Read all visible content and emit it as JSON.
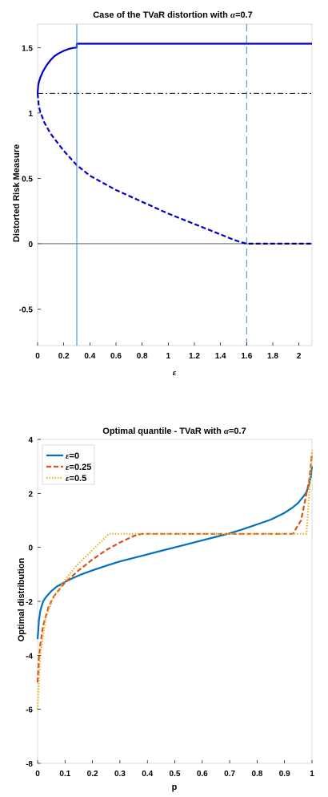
{
  "chart_data": [
    {
      "type": "line",
      "title_prefix": "Case of the TVaR distortion with ",
      "title_symbol": "α",
      "title_suffix": "=0.7",
      "xlabel": "ε",
      "ylabel": "Distorted Risk Measure",
      "xlim": [
        0,
        2.1
      ],
      "ylim": [
        -0.78,
        1.68
      ],
      "xticks": [
        "0",
        "0.2",
        "0.4",
        "0.6",
        "0.8",
        "1",
        "1.2",
        "1.4",
        "1.6",
        "1.8",
        "2"
      ],
      "yticks": [
        "-0.5",
        "0",
        "0.5",
        "1",
        "1.5"
      ],
      "grid": false,
      "colors": {
        "upper": "#0000cd",
        "lower": "#0000cd",
        "dashdot": "#000000",
        "vline1": "#4a90d9",
        "vline2": "#4a90d9"
      },
      "series": [
        {
          "style": "solid",
          "x": [
            0,
            0.005,
            0.01,
            0.02,
            0.04,
            0.06,
            0.08,
            0.1,
            0.13,
            0.16,
            0.2,
            0.24,
            0.27,
            0.3,
            0.3,
            0.5,
            1.0,
            1.5,
            2.0,
            2.1
          ],
          "y": [
            1.15,
            1.21,
            1.235,
            1.27,
            1.315,
            1.35,
            1.38,
            1.405,
            1.435,
            1.455,
            1.475,
            1.49,
            1.497,
            1.5,
            1.53,
            1.53,
            1.53,
            1.53,
            1.53,
            1.53
          ]
        },
        {
          "style": "dashed",
          "x": [
            0,
            0.01,
            0.02,
            0.05,
            0.1,
            0.2,
            0.3,
            0.4,
            0.6,
            0.8,
            1.0,
            1.2,
            1.4,
            1.5,
            1.56,
            1.6,
            1.8,
            2.0,
            2.1
          ],
          "y": [
            1.15,
            1.05,
            1.01,
            0.93,
            0.84,
            0.71,
            0.6,
            0.52,
            0.41,
            0.32,
            0.23,
            0.15,
            0.07,
            0.03,
            0.01,
            0.0,
            0.0,
            0.0,
            0.0
          ]
        },
        {
          "style": "dashdot",
          "x": [
            0,
            2.1
          ],
          "y": [
            1.15,
            1.15
          ]
        },
        {
          "style": "thin",
          "x": [
            0,
            2.1
          ],
          "y": [
            0,
            0
          ]
        }
      ],
      "vlines": [
        {
          "x": 0.3,
          "style": "solid"
        },
        {
          "x": 1.6,
          "style": "dashed"
        }
      ]
    },
    {
      "type": "line",
      "title_prefix": "Optimal quantile - TVaR with ",
      "title_symbol": "α",
      "title_suffix": "=0.7",
      "xlabel": "p",
      "ylabel": "Optimal distribution",
      "xlim": [
        0,
        1
      ],
      "ylim": [
        -8,
        4
      ],
      "xticks": [
        "0",
        "0.1",
        "0.2",
        "0.3",
        "0.4",
        "0.5",
        "0.6",
        "0.7",
        "0.8",
        "0.9",
        "1"
      ],
      "yticks": [
        "-8",
        "-6",
        "-4",
        "-2",
        "0",
        "2",
        "4"
      ],
      "grid": false,
      "legend_position": "top-left",
      "series": [
        {
          "name": "=0",
          "symbol": "ε",
          "color": "#0072bd",
          "style": "solid",
          "x": [
            0.0,
            0.005,
            0.01,
            0.02,
            0.03,
            0.05,
            0.07,
            0.1,
            0.13,
            0.16,
            0.2,
            0.25,
            0.3,
            0.35,
            0.4,
            0.45,
            0.5,
            0.55,
            0.6,
            0.65,
            0.7,
            0.75,
            0.8,
            0.85,
            0.9,
            0.93,
            0.95,
            0.97,
            0.98,
            0.99,
            0.995,
            1.0
          ],
          "y": [
            -3.4,
            -2.7,
            -2.35,
            -2.0,
            -1.85,
            -1.62,
            -1.45,
            -1.28,
            -1.13,
            -1.0,
            -0.85,
            -0.68,
            -0.52,
            -0.39,
            -0.26,
            -0.13,
            0.0,
            0.13,
            0.26,
            0.39,
            0.52,
            0.68,
            0.85,
            1.03,
            1.28,
            1.48,
            1.65,
            1.9,
            2.05,
            2.35,
            2.6,
            3.0
          ]
        },
        {
          "name": "=0.25",
          "symbol": "ε",
          "color": "#d95319",
          "style": "dashed",
          "x": [
            0.0,
            0.005,
            0.01,
            0.02,
            0.04,
            0.06,
            0.1,
            0.15,
            0.2,
            0.25,
            0.3,
            0.35,
            0.38,
            0.5,
            0.6,
            0.7,
            0.8,
            0.9,
            0.93,
            0.96,
            0.99,
            1.0
          ],
          "y": [
            -5.0,
            -4.1,
            -3.6,
            -2.9,
            -2.2,
            -1.8,
            -1.3,
            -0.85,
            -0.45,
            -0.1,
            0.18,
            0.42,
            0.5,
            0.5,
            0.5,
            0.5,
            0.5,
            0.5,
            0.5,
            1.0,
            2.5,
            3.5
          ]
        },
        {
          "name": "=0.5",
          "symbol": "ε",
          "color": "#edb120",
          "style": "dotted",
          "x": [
            0.0,
            0.01,
            0.03,
            0.06,
            0.1,
            0.14,
            0.2,
            0.26,
            0.3,
            0.5,
            0.7,
            0.9,
            0.98,
            0.99,
            1.0
          ],
          "y": [
            -6.0,
            -4.0,
            -2.6,
            -1.8,
            -1.2,
            -0.7,
            -0.1,
            0.5,
            0.5,
            0.5,
            0.5,
            0.5,
            0.5,
            2.0,
            3.6
          ]
        }
      ]
    }
  ]
}
